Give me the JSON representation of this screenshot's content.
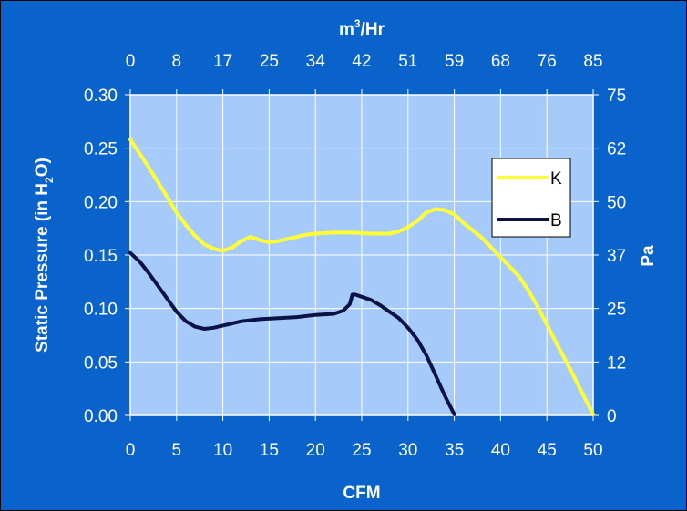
{
  "chart_data": {
    "type": "line",
    "xlabel": "CFM",
    "x2label": "m",
    "x2label_sup": "3",
    "x2label_rest": "/Hr",
    "ylabel_main": "Static Pressure (in H",
    "ylabel_sub": "2",
    "ylabel_tail": "O)",
    "y2label": "Pa",
    "xlim": [
      0,
      50
    ],
    "ylim": [
      0,
      0.3
    ],
    "x_ticks": [
      "0",
      "5",
      "10",
      "15",
      "20",
      "25",
      "30",
      "35",
      "40",
      "45",
      "50"
    ],
    "y_ticks": [
      "0.00",
      "0.05",
      "0.10",
      "0.15",
      "0.20",
      "0.25",
      "0.30"
    ],
    "x2_ticks": [
      "0",
      "8",
      "17",
      "25",
      "34",
      "42",
      "51",
      "59",
      "68",
      "76",
      "85"
    ],
    "y2_ticks": [
      "0",
      "12",
      "25",
      "37",
      "50",
      "62",
      "75"
    ],
    "grid": true,
    "legend_position": "right",
    "colors": {
      "background": "#0a63cb",
      "plot": "#a6cbfa",
      "grid": "#ffffff",
      "K": "#ffff33",
      "B": "#0b1246"
    },
    "series": [
      {
        "name": "K",
        "x": [
          0,
          1,
          2,
          3,
          4,
          5,
          6,
          7,
          8,
          9,
          10,
          11,
          12,
          13,
          14,
          15,
          16,
          17,
          18,
          19,
          20,
          22,
          24,
          26,
          28,
          29,
          30,
          31,
          32,
          33,
          34,
          35,
          36,
          38,
          40,
          42,
          43,
          44,
          45,
          46,
          47,
          48,
          49,
          50
        ],
        "y": [
          0.258,
          0.245,
          0.232,
          0.218,
          0.204,
          0.19,
          0.178,
          0.168,
          0.16,
          0.156,
          0.154,
          0.157,
          0.163,
          0.167,
          0.164,
          0.162,
          0.163,
          0.165,
          0.167,
          0.169,
          0.17,
          0.171,
          0.171,
          0.17,
          0.17,
          0.172,
          0.176,
          0.182,
          0.19,
          0.193,
          0.192,
          0.188,
          0.18,
          0.166,
          0.148,
          0.13,
          0.117,
          0.102,
          0.085,
          0.068,
          0.052,
          0.035,
          0.018,
          0.001
        ]
      },
      {
        "name": "B",
        "x": [
          0,
          1,
          2,
          3,
          4,
          5,
          6,
          7,
          8,
          9,
          10,
          11,
          12,
          14,
          16,
          18,
          20,
          22,
          23,
          23.7,
          24,
          24.3,
          25,
          26,
          27,
          28,
          29,
          30,
          31,
          32,
          33,
          34,
          35
        ],
        "y": [
          0.152,
          0.144,
          0.133,
          0.121,
          0.109,
          0.097,
          0.088,
          0.083,
          0.081,
          0.082,
          0.084,
          0.086,
          0.088,
          0.09,
          0.091,
          0.092,
          0.094,
          0.095,
          0.098,
          0.104,
          0.113,
          0.113,
          0.111,
          0.108,
          0.103,
          0.097,
          0.091,
          0.082,
          0.071,
          0.056,
          0.037,
          0.018,
          0.001
        ]
      }
    ]
  }
}
